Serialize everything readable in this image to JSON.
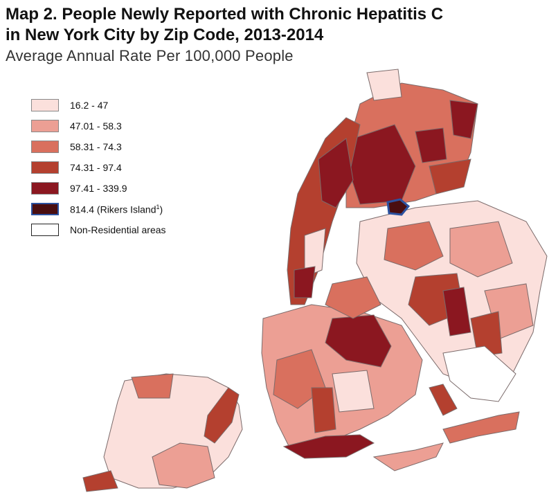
{
  "title": {
    "line1": "Map 2. People Newly Reported with Chronic Hepatitis C",
    "line2": "in New York City by Zip Code, 2013-2014"
  },
  "subtitle": "Average Annual Rate Per 100,000 People",
  "legend": [
    {
      "label": "16.2 - 47",
      "color": "#fbe0dc"
    },
    {
      "label": "47.01 - 58.3",
      "color": "#ec9f94"
    },
    {
      "label": "58.31 - 74.3",
      "color": "#d9705e"
    },
    {
      "label": "74.31 - 97.4",
      "color": "#b4402f"
    },
    {
      "label": "97.41 - 339.9",
      "color": "#8b1720"
    },
    {
      "label": "814.4 (Rikers Island",
      "sup": "1",
      "suffix": ")",
      "color": "#4a0e10",
      "border": "#2c52a0"
    },
    {
      "label": "Non-Residential areas",
      "color": "#ffffff"
    }
  ]
}
